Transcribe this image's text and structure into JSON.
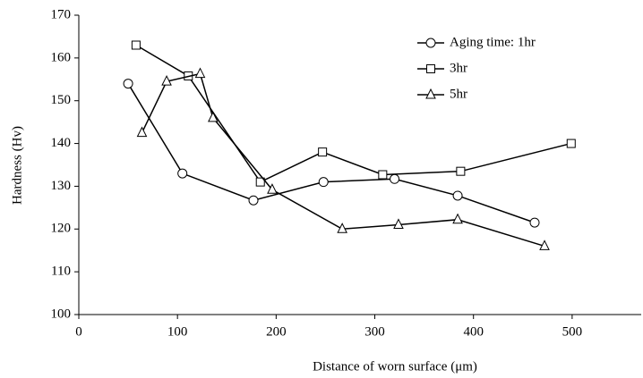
{
  "chart_data": {
    "type": "line",
    "xlabel": "Distance of worn surface (μm)",
    "ylabel": "Hardness (Hv)",
    "xlim": [
      0,
      570
    ],
    "xticks": [
      0,
      100,
      200,
      300,
      400,
      500
    ],
    "ylim": [
      100,
      170
    ],
    "yticks": [
      100,
      110,
      120,
      130,
      140,
      150,
      160,
      170
    ],
    "grid": false,
    "legend": "upper right",
    "series": [
      {
        "name": "Aging time: 1hr",
        "color": "#000000",
        "marker": "circle",
        "x": [
          50,
          105,
          177,
          248,
          320,
          384,
          462
        ],
        "values": [
          154,
          133,
          126.7,
          131,
          131.7,
          127.8,
          121.5
        ]
      },
      {
        "name": "3hr",
        "color": "#000000",
        "marker": "square",
        "x": [
          58,
          111,
          184,
          247,
          308,
          387,
          499
        ],
        "values": [
          163,
          155.8,
          131,
          138,
          132.7,
          133.5,
          140
        ]
      },
      {
        "name": "5hr",
        "color": "#000000",
        "marker": "triangle",
        "x": [
          64,
          89,
          123,
          136,
          196,
          267,
          324,
          384,
          472
        ],
        "values": [
          142.5,
          154.5,
          156.3,
          146,
          129.2,
          120,
          121,
          122.2,
          116
        ]
      }
    ]
  }
}
